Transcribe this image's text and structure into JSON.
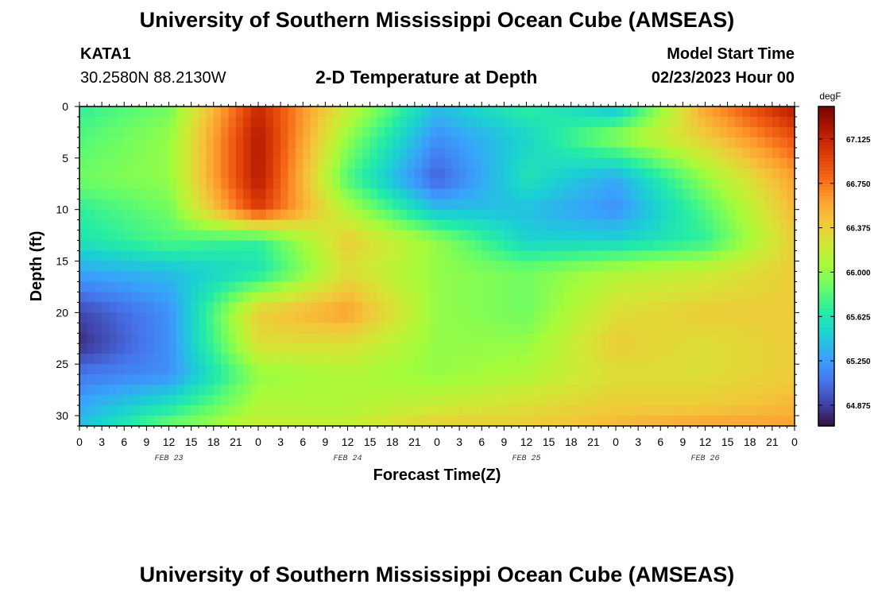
{
  "header": {
    "title": "University of Southern Mississippi Ocean Cube (AMSEAS)",
    "station": "KATA1",
    "coords": "30.2580N  88.2130W",
    "plot_title": "2-D Temperature at Depth",
    "model_start_label": "Model Start Time",
    "model_start_value": "02/23/2023 Hour 00"
  },
  "footer": {
    "title": "University of Southern Mississippi Ocean Cube (AMSEAS)"
  },
  "chart_data": {
    "type": "heatmap",
    "xlabel": "Forecast Time(Z)",
    "ylabel": "Depth (ft)",
    "x_tick_labels": [
      "0",
      "3",
      "6",
      "9",
      "12",
      "15",
      "18",
      "21",
      "0",
      "3",
      "6",
      "9",
      "12",
      "15",
      "18",
      "21",
      "0",
      "3",
      "6",
      "9",
      "12",
      "15",
      "18",
      "21",
      "0",
      "3",
      "6",
      "9",
      "12",
      "15",
      "18",
      "21",
      "0"
    ],
    "day_labels": [
      "FEB 23",
      "FEB 24",
      "FEB 25",
      "FEB 26"
    ],
    "y_ticks": [
      0,
      5,
      10,
      15,
      20,
      25,
      30
    ],
    "ylim": [
      0,
      31
    ],
    "x_range_hours": [
      0,
      96
    ],
    "colorbar": {
      "unit": "degF",
      "min": 64.7,
      "max": 67.4,
      "tick_labels": [
        "67.125",
        "66.750",
        "66.375",
        "66.000",
        "65.625",
        "65.250",
        "64.875"
      ],
      "tick_values": [
        67.125,
        66.75,
        66.375,
        66.0,
        65.625,
        65.25,
        64.875
      ],
      "colors": [
        "#30123b",
        "#4145ab",
        "#4675ed",
        "#39a2fc",
        "#1bcfd4",
        "#24eca6",
        "#61fc6c",
        "#a4fc3b",
        "#d1e834",
        "#f3c63a",
        "#fe9b2d",
        "#f36315",
        "#d93806",
        "#b11901",
        "#7a0402"
      ]
    },
    "depth_levels_ft": [
      0,
      3,
      7,
      10,
      13,
      16,
      20,
      23,
      26,
      29,
      31
    ],
    "time_hours": [
      0,
      12,
      24,
      36,
      48,
      60,
      72,
      84,
      96
    ],
    "values_degF": [
      [
        65.7,
        65.9,
        67.1,
        66.2,
        65.4,
        65.7,
        65.4,
        66.6,
        67.2
      ],
      [
        65.8,
        66.0,
        67.2,
        66.0,
        65.2,
        65.5,
        66.0,
        66.4,
        66.9
      ],
      [
        65.9,
        66.0,
        67.2,
        65.8,
        65.0,
        65.6,
        65.3,
        66.0,
        66.6
      ],
      [
        65.7,
        65.9,
        67.0,
        66.1,
        65.4,
        65.4,
        65.2,
        65.8,
        66.5
      ],
      [
        65.6,
        65.8,
        65.7,
        66.4,
        66.0,
        65.5,
        65.5,
        65.7,
        66.4
      ],
      [
        65.3,
        65.4,
        65.6,
        66.3,
        66.0,
        65.9,
        66.1,
        66.2,
        66.4
      ],
      [
        64.9,
        65.2,
        66.4,
        66.6,
        66.0,
        65.9,
        66.3,
        66.4,
        66.4
      ],
      [
        64.8,
        65.2,
        66.3,
        66.3,
        66.0,
        66.0,
        66.4,
        66.3,
        66.4
      ],
      [
        65.1,
        65.2,
        66.0,
        66.1,
        66.0,
        66.1,
        66.3,
        66.3,
        66.4
      ],
      [
        65.3,
        65.6,
        66.1,
        66.1,
        66.2,
        66.3,
        66.4,
        66.4,
        66.5
      ],
      [
        65.4,
        65.9,
        66.2,
        66.2,
        66.4,
        66.4,
        66.5,
        66.6,
        66.6
      ]
    ]
  }
}
